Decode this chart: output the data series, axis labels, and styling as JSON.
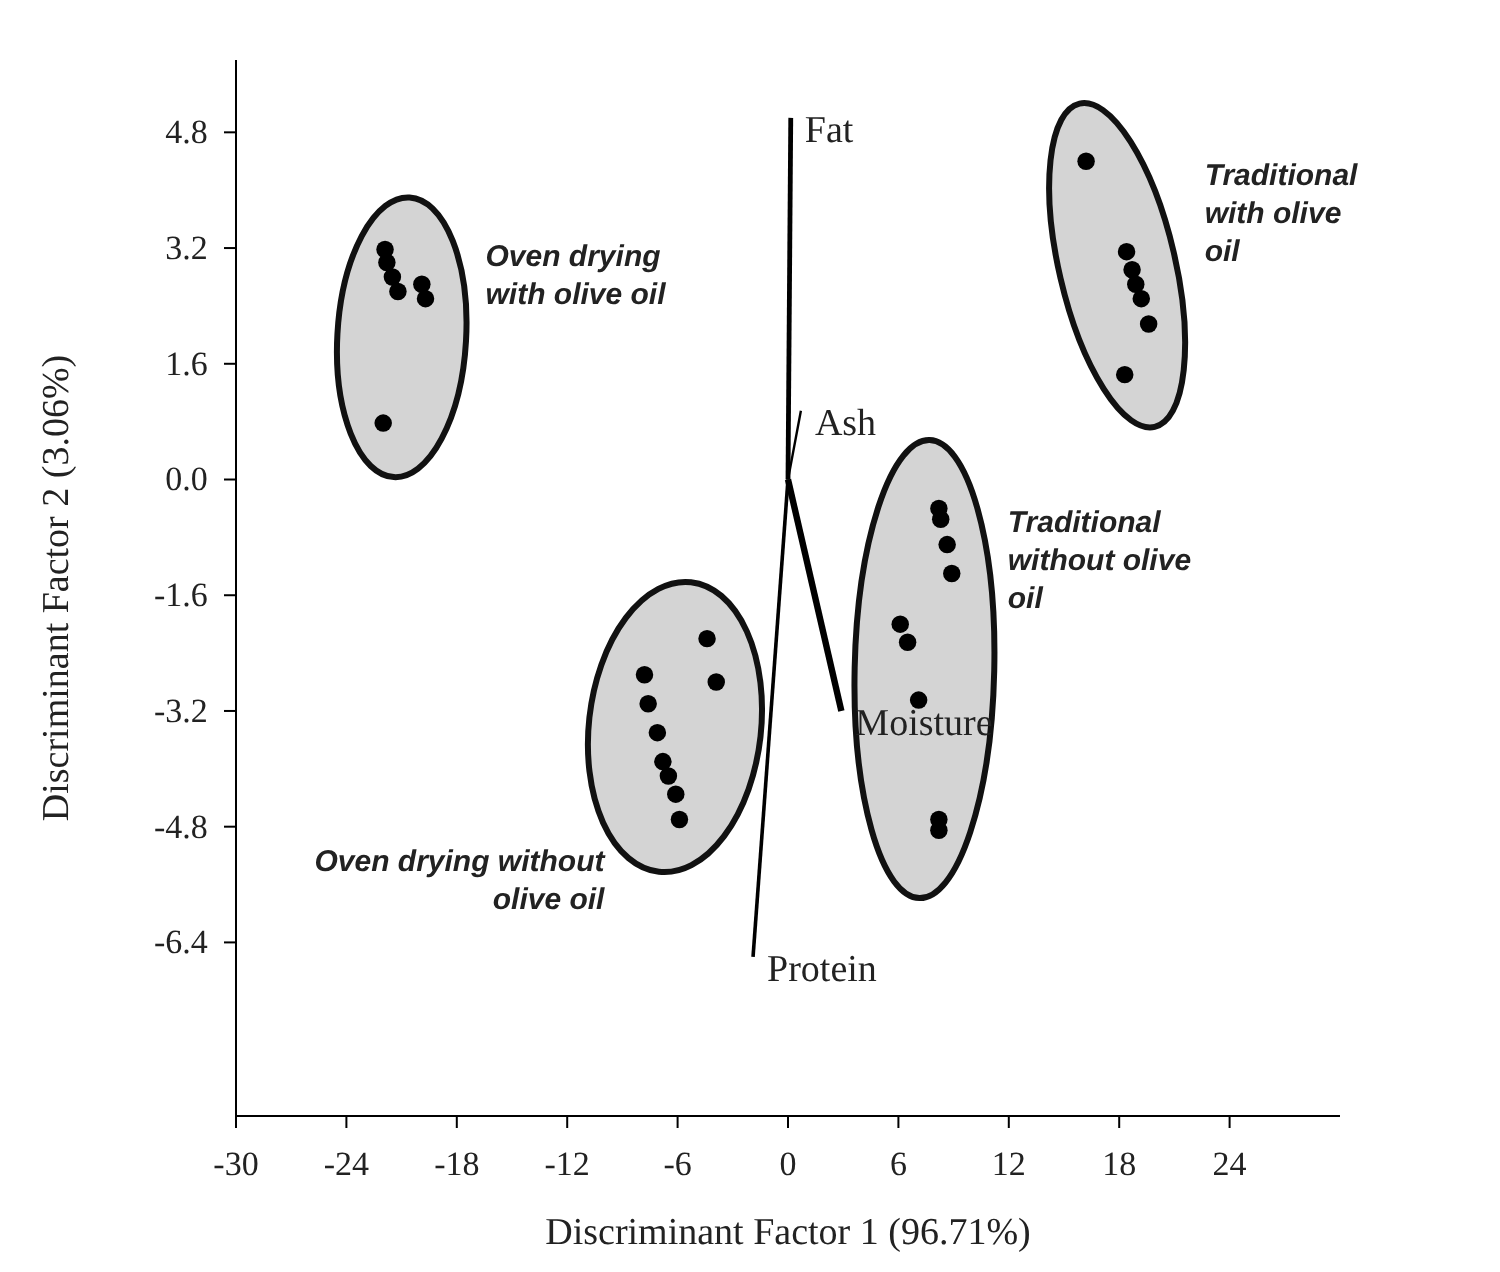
{
  "chart_data": {
    "type": "scatter",
    "xlabel": "Discriminant Factor 1 (96.71%)",
    "ylabel": "Discriminant Factor 2 (3.06%)",
    "xlim": [
      -30,
      30
    ],
    "xticks": [
      -30,
      -24,
      -18,
      -12,
      -6,
      0,
      6,
      12,
      18,
      24
    ],
    "ylim": [
      -8.8,
      5.8
    ],
    "yticks": [
      {
        "value": 4.8,
        "label": "4.8"
      },
      {
        "value": 3.2,
        "label": "3.2"
      },
      {
        "value": 1.6,
        "label": "1.6"
      },
      {
        "value": 0,
        "label": "0.0"
      },
      {
        "value": -1.6,
        "label": "-1.6"
      },
      {
        "value": -3.2,
        "label": "-3.2"
      },
      {
        "value": -4.8,
        "label": "-4.8"
      },
      {
        "value": -6.4,
        "label": "-6.4"
      }
    ],
    "marker": "circle",
    "grid": false,
    "series": [
      {
        "name": "Oven drying with olive oil",
        "color": "#000000",
        "x": [
          -21.9,
          -21.8,
          -21.5,
          -21.2,
          -19.9,
          -19.7,
          -22.0
        ],
        "values": [
          3.18,
          3.0,
          2.8,
          2.6,
          2.7,
          2.5,
          0.78
        ]
      },
      {
        "name": "Oven drying without olive oil",
        "color": "#000000",
        "x": [
          -4.4,
          -3.9,
          -7.8,
          -7.6,
          -7.1,
          -6.8,
          -6.5,
          -6.1,
          -5.9
        ],
        "values": [
          -2.2,
          -2.8,
          -2.7,
          -3.1,
          -3.5,
          -3.9,
          -4.1,
          -4.35,
          -4.7
        ]
      },
      {
        "name": "Traditional without olive oil",
        "color": "#000000",
        "x": [
          8.2,
          8.3,
          8.65,
          8.9,
          6.1,
          6.5,
          7.1,
          8.2,
          8.2
        ],
        "values": [
          -0.4,
          -0.55,
          -0.9,
          -1.3,
          -2.0,
          -2.25,
          -3.05,
          -4.7,
          -4.85
        ]
      },
      {
        "name": "Traditional with olive oil",
        "color": "#000000",
        "x": [
          16.2,
          18.4,
          18.7,
          18.9,
          19.2,
          19.6,
          18.3
        ],
        "values": [
          4.4,
          3.15,
          2.9,
          2.7,
          2.5,
          2.15,
          1.45
        ]
      },
      {
        "name": "Fat",
        "type": "line",
        "color": "#000000",
        "marker": "none",
        "x": [
          0,
          0.15
        ],
        "values": [
          0,
          5.0
        ]
      },
      {
        "name": "Ash",
        "type": "line",
        "color": "#000000",
        "marker": "none",
        "x": [
          0,
          0.7
        ],
        "values": [
          0,
          0.95
        ]
      },
      {
        "name": "Moisture",
        "type": "line",
        "color": "#000000",
        "marker": "none",
        "x": [
          0,
          2.9
        ],
        "values": [
          0,
          -3.2
        ]
      },
      {
        "name": "Protein",
        "type": "line",
        "color": "#000000",
        "marker": "none",
        "x": [
          0,
          -1.9
        ],
        "values": [
          0,
          -6.6
        ]
      }
    ]
  }
}
